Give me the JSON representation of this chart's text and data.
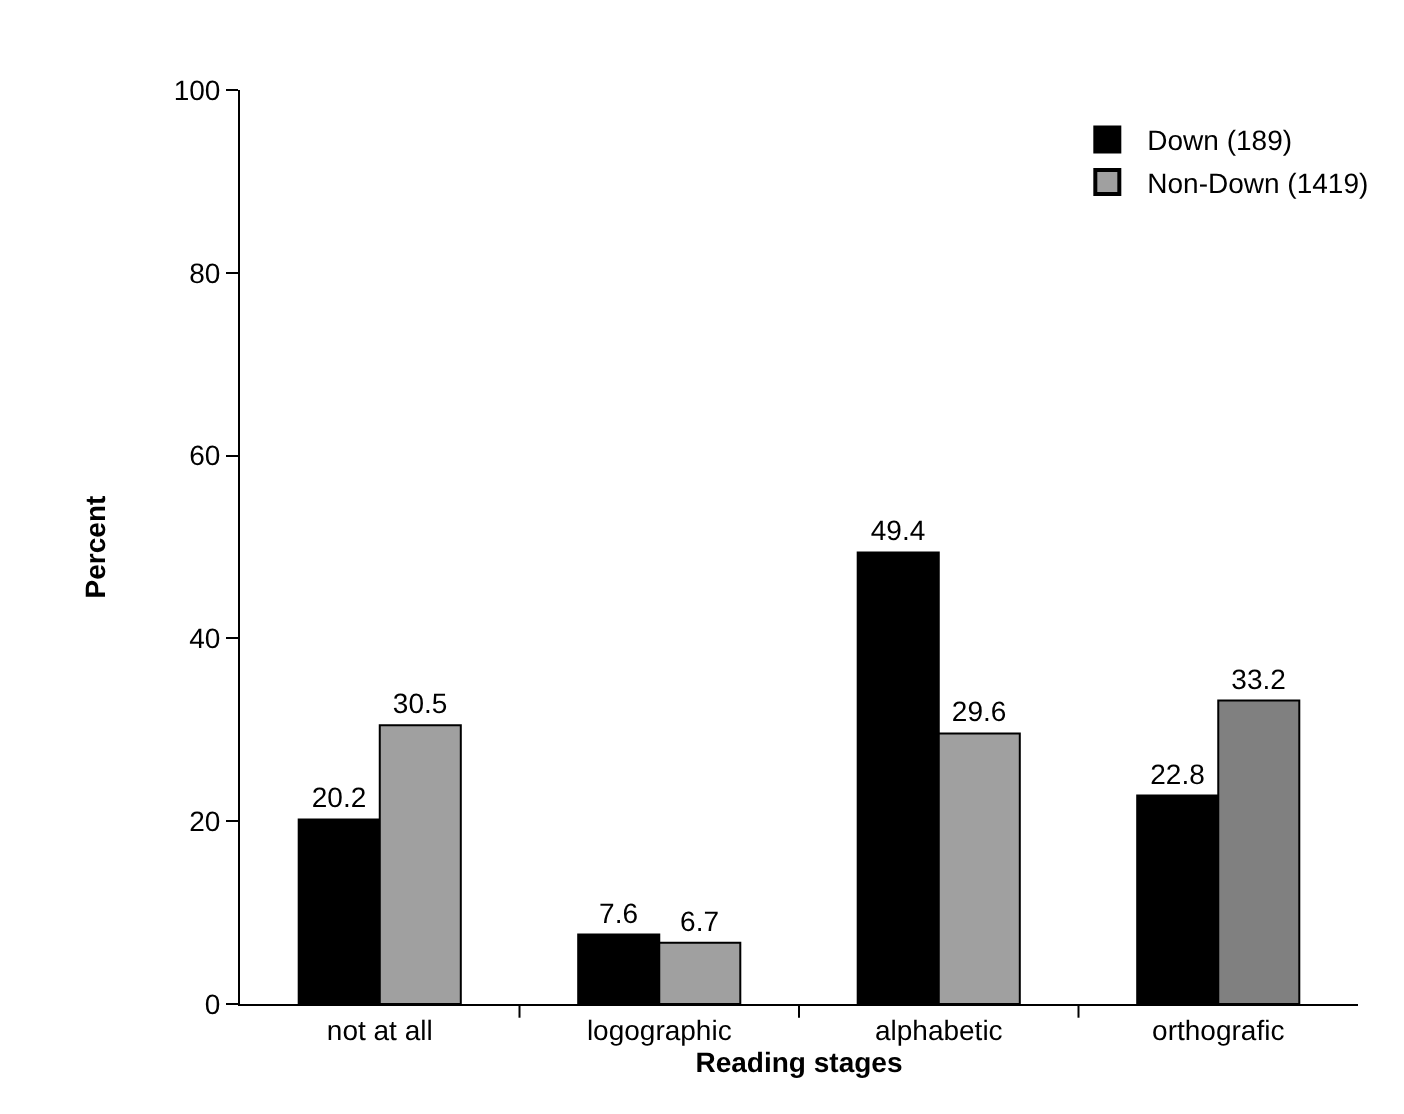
{
  "chart_data": {
    "type": "bar",
    "xlabel": "Reading stages",
    "ylabel": "Percent",
    "categories": [
      "not at all",
      "logographic",
      "alphabetic",
      "orthografic"
    ],
    "series": [
      {
        "name": "Down (189)",
        "color": "#000000",
        "values": [
          20.2,
          7.6,
          49.4,
          22.8
        ]
      },
      {
        "name": "Non-Down (1419)",
        "colors": [
          "#a0a0a0",
          "#a0a0a0",
          "#a0a0a0",
          "#808080"
        ],
        "values": [
          30.5,
          6.7,
          29.6,
          33.2
        ]
      }
    ],
    "ylim": [
      0,
      100
    ],
    "yticks": [
      0,
      20,
      40,
      60,
      80,
      100
    ],
    "grid": false,
    "legend": "top right",
    "data_labels": true
  }
}
